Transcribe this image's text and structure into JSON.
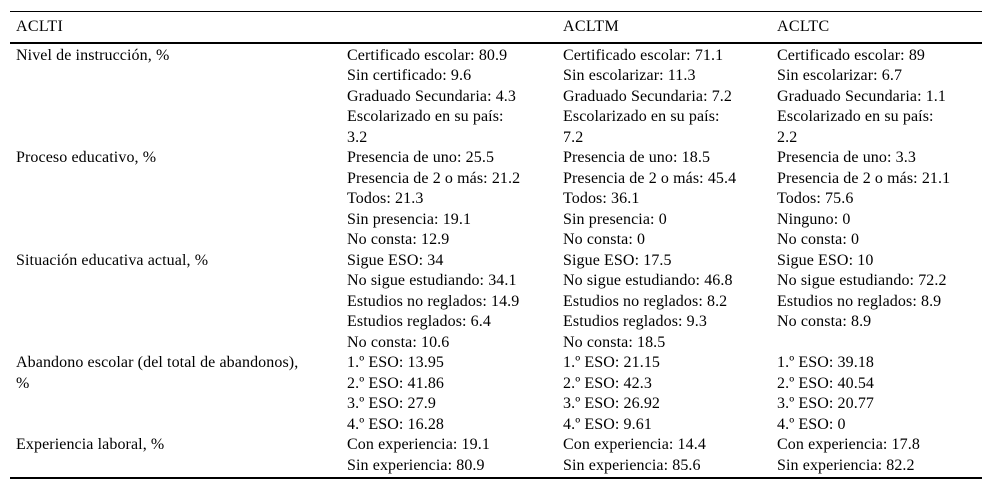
{
  "table": {
    "header": {
      "col_label_group": "ACLTI",
      "col_blank": "",
      "col_group_2": "ACLTM",
      "col_group_3": "ACLTC"
    },
    "rows": [
      {
        "label_lines": [
          "Nivel de instrucción, %"
        ],
        "aclti_lines": [
          "Certificado escolar: 80.9",
          "Sin certificado: 9.6",
          "Graduado Secundaria: 4.3",
          "Escolarizado en su país:",
          "3.2"
        ],
        "acltm_lines": [
          "Certificado escolar: 71.1",
          "Sin escolarizar: 11.3",
          "Graduado Secundaria: 7.2",
          "Escolarizado en su país:",
          "7.2"
        ],
        "acltc_lines": [
          "Certificado escolar: 89",
          "Sin escolarizar: 6.7",
          "Graduado Secundaria: 1.1",
          "Escolarizado en su país:",
          "2.2"
        ]
      },
      {
        "label_lines": [
          "Proceso educativo, %"
        ],
        "aclti_lines": [
          "Presencia de uno: 25.5",
          "Presencia de 2 o más: 21.2",
          "Todos: 21.3",
          "Sin presencia: 19.1",
          "No consta: 12.9"
        ],
        "acltm_lines": [
          "Presencia de uno: 18.5",
          "Presencia de 2 o más: 45.4",
          "Todos: 36.1",
          "Sin presencia: 0",
          "No consta: 0"
        ],
        "acltc_lines": [
          "Presencia de uno: 3.3",
          "Presencia de 2 o más: 21.1",
          "Todos: 75.6",
          "Ninguno: 0",
          "No consta: 0"
        ]
      },
      {
        "label_lines": [
          "Situación educativa actual, %"
        ],
        "aclti_lines": [
          "Sigue ESO: 34",
          "No sigue estudiando: 34.1",
          "Estudios no reglados: 14.9",
          "Estudios reglados: 6.4",
          "No consta: 10.6"
        ],
        "acltm_lines": [
          "Sigue ESO: 17.5",
          "No sigue estudiando: 46.8",
          "Estudios no reglados: 8.2",
          "Estudios reglados: 9.3",
          "No consta: 18.5"
        ],
        "acltc_lines": [
          "Sigue ESO: 10",
          "No sigue estudiando: 72.2",
          "Estudios no reglados: 8.9",
          "No consta: 8.9"
        ]
      },
      {
        "label_lines": [
          "Abandono escolar (del total de abandonos),",
          "%"
        ],
        "aclti_lines": [
          "1.º ESO: 13.95",
          "2.º ESO: 41.86",
          "3.º ESO: 27.9",
          "4.º ESO: 16.28"
        ],
        "acltm_lines": [
          "1.º ESO: 21.15",
          "2.º ESO: 42.3",
          "3.º ESO: 26.92",
          "4.º ESO: 9.61"
        ],
        "acltc_lines": [
          "1.º ESO: 39.18",
          "2.º ESO: 40.54",
          "3.º ESO: 20.77",
          "4.º ESO: 0"
        ]
      },
      {
        "label_lines": [
          "Experiencia laboral, %"
        ],
        "aclti_lines": [
          "Con experiencia: 19.1",
          "Sin experiencia: 80.9"
        ],
        "acltm_lines": [
          "Con experiencia: 14.4",
          "Sin experiencia: 85.6"
        ],
        "acltc_lines": [
          "Con experiencia: 17.8",
          "Sin experiencia: 82.2"
        ]
      }
    ]
  }
}
